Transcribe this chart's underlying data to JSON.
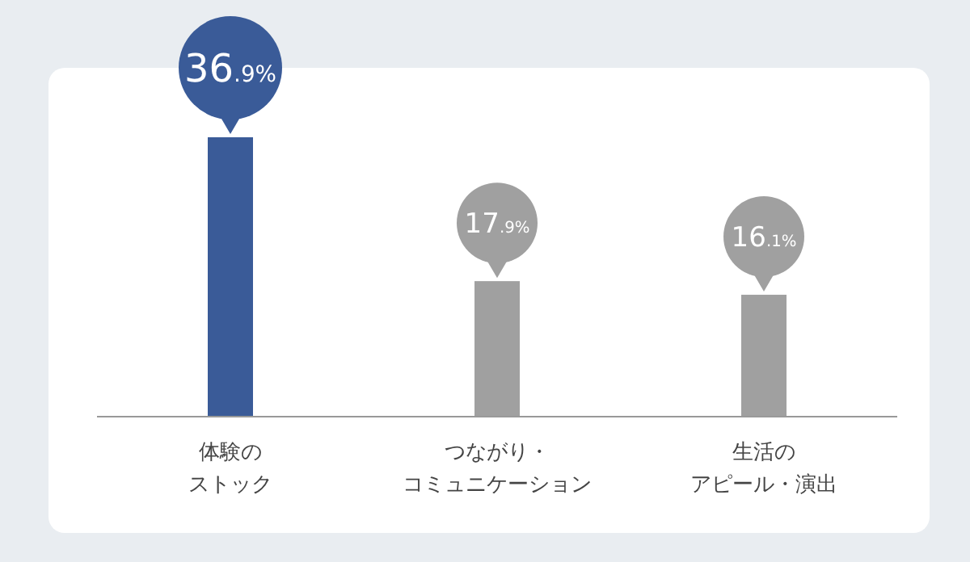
{
  "chart_data": {
    "type": "bar",
    "categories": [
      "体験のストック",
      "つながり・コミュニケーション",
      "生活のアピール・演出"
    ],
    "values": [
      36.9,
      17.9,
      16.1
    ],
    "colors": [
      "#3a5b98",
      "#a0a0a0",
      "#a0a0a0"
    ],
    "value_labels": [
      "36.9%",
      "17.9%",
      "16.1%"
    ]
  }
}
